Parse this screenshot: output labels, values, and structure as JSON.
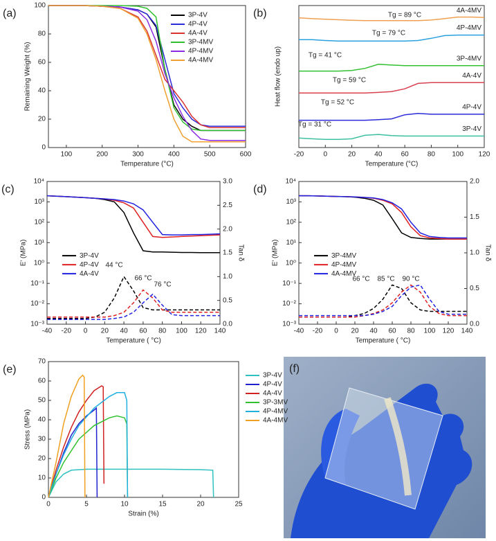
{
  "chart_data": [
    {
      "type": "line",
      "label": "(a)",
      "xlabel": "Temperature (°C)",
      "ylabel": "Remaining Weight (%)",
      "xlim": [
        50,
        600
      ],
      "xticks": [
        100,
        200,
        300,
        400,
        500,
        600
      ],
      "ylim": [
        0,
        100
      ],
      "yticks": [
        0,
        20,
        40,
        60,
        80,
        100
      ],
      "legend": "upper right",
      "x": [
        50,
        100,
        150,
        200,
        250,
        300,
        325,
        350,
        375,
        400,
        425,
        450,
        475,
        500,
        550,
        600
      ],
      "series": [
        {
          "name": "3P-4V",
          "color": "#000000",
          "values": [
            100,
            100,
            100,
            99.5,
            99,
            97,
            94,
            85,
            55,
            30,
            20,
            15,
            12,
            12,
            12,
            12
          ]
        },
        {
          "name": "4P-4V",
          "color": "#2b2bd9",
          "values": [
            100,
            100,
            100,
            99.5,
            99,
            97,
            94,
            86,
            62,
            38,
            28,
            20,
            16,
            15,
            15,
            15
          ]
        },
        {
          "name": "4A-4V",
          "color": "#d93030",
          "values": [
            100,
            100,
            100,
            99.5,
            98,
            92,
            82,
            65,
            48,
            40,
            32,
            22,
            16,
            14,
            14,
            14
          ]
        },
        {
          "name": "3P-4MV",
          "color": "#2fc02f",
          "values": [
            100,
            100,
            100,
            100,
            100,
            99.5,
            98,
            92,
            55,
            28,
            18,
            13,
            12,
            12,
            12,
            12
          ]
        },
        {
          "name": "4P-4MV",
          "color": "#8a2be2",
          "values": [
            100,
            100,
            100,
            99.5,
            99,
            96,
            90,
            75,
            52,
            35,
            22,
            12,
            6,
            5,
            5,
            5
          ]
        },
        {
          "name": "4A-4MV",
          "color": "#f0a030",
          "values": [
            100,
            100,
            100,
            99.5,
            98,
            91,
            80,
            62,
            40,
            20,
            8,
            4,
            4,
            4,
            4,
            4
          ]
        }
      ]
    },
    {
      "type": "line",
      "label": "(b)",
      "xlabel": "Temperature (°C)",
      "ylabel": "Heat flow (endo up)",
      "xlim": [
        -20,
        120
      ],
      "xticks": [
        -20,
        0,
        20,
        40,
        60,
        80,
        100,
        120
      ],
      "ylim": [
        0,
        5.2
      ],
      "legend": "inline",
      "x": [
        -20,
        -10,
        0,
        10,
        20,
        30,
        40,
        50,
        60,
        70,
        80,
        90,
        100,
        110,
        120
      ],
      "series": [
        {
          "name": "3P-4V",
          "color": "#3cc0a0",
          "values": [
            0.35,
            0.32,
            0.3,
            0.3,
            0.32,
            0.45,
            0.48,
            0.44,
            0.42,
            0.42,
            0.42,
            0.42,
            0.42,
            0.42,
            0.42
          ]
        },
        {
          "name": "4P-4V",
          "color": "#2b2bd9",
          "values": [
            1.0,
            1.0,
            1.0,
            1.0,
            1.0,
            1.0,
            1.02,
            1.05,
            1.2,
            1.25,
            1.22,
            1.22,
            1.22,
            1.22,
            1.22
          ]
        },
        {
          "name": "4A-4V",
          "color": "#d94050",
          "values": [
            2.0,
            2.0,
            2.0,
            2.0,
            2.0,
            2.0,
            2.02,
            2.05,
            2.15,
            2.35,
            2.38,
            2.38,
            2.38,
            2.38,
            2.38
          ]
        },
        {
          "name": "3P-4MV",
          "color": "#30c030",
          "values": [
            2.8,
            2.8,
            2.8,
            2.8,
            2.82,
            2.9,
            3.05,
            3.02,
            3.0,
            3.0,
            3.0,
            3.0,
            3.0,
            3.0,
            3.0
          ]
        },
        {
          "name": "4P-4MV",
          "color": "#2aa0e0",
          "values": [
            3.95,
            3.95,
            3.92,
            3.9,
            3.9,
            3.9,
            3.9,
            3.9,
            3.9,
            3.92,
            4.0,
            4.1,
            4.12,
            4.12,
            4.12
          ]
        },
        {
          "name": "4A-4MV",
          "color": "#f0a050",
          "values": [
            4.75,
            4.72,
            4.7,
            4.68,
            4.66,
            4.65,
            4.65,
            4.65,
            4.65,
            4.65,
            4.67,
            4.72,
            4.78,
            4.78,
            4.76
          ]
        }
      ],
      "annotations": [
        {
          "text": "Tg = 89 °C",
          "color": "#000"
        },
        {
          "text": "Tg = 79 °C",
          "color": "#000"
        },
        {
          "text": "Tg = 41 °C",
          "color": "#000"
        },
        {
          "text": "Tg = 59 °C",
          "color": "#000"
        },
        {
          "text": "Tg = 52 °C",
          "color": "#000"
        },
        {
          "text": "Tg = 31 °C",
          "color": "#000"
        }
      ]
    },
    {
      "type": "line",
      "label": "(c)",
      "xlabel": "Temperature ( °C)",
      "ylabel": "E' (MPa)",
      "y2label": "Tan δ",
      "xlim": [
        -40,
        140
      ],
      "xticks": [
        -40,
        -20,
        0,
        20,
        40,
        60,
        80,
        100,
        120,
        140
      ],
      "ylog": true,
      "ylim": [
        0.001,
        10000
      ],
      "yticks": [
        {
          "value": 0.001,
          "label": "10⁻³"
        },
        {
          "value": 0.01,
          "label": "10⁻²"
        },
        {
          "value": 0.1,
          "label": "10⁻¹"
        },
        {
          "value": 1,
          "label": "10⁰"
        },
        {
          "value": 10,
          "label": "10¹"
        },
        {
          "value": 100,
          "label": "10²"
        },
        {
          "value": 1000,
          "label": "10³"
        },
        {
          "value": 10000,
          "label": "10⁴"
        }
      ],
      "y2lim": [
        0,
        3
      ],
      "y2ticks": [
        {
          "value": 0,
          "label": "0.0"
        },
        0.5,
        {
          "value": 1,
          "label": "1.0"
        },
        1.5,
        {
          "value": 2,
          "label": "2.0"
        },
        2.5,
        {
          "value": 3,
          "label": "3.0"
        }
      ],
      "legend": "center left",
      "x": [
        -40,
        -30,
        -20,
        -10,
        0,
        10,
        20,
        30,
        40,
        50,
        60,
        70,
        80,
        90,
        100,
        110,
        120,
        130,
        140
      ],
      "series": [
        {
          "name": "3P-4V",
          "color": "#000000",
          "values": [
            2000,
            1900,
            1800,
            1700,
            1600,
            1500,
            1300,
            1000,
            300,
            30,
            4,
            3.5,
            3.5,
            3.4,
            3.3,
            3.3,
            3.2,
            3.2,
            3.2
          ]
        },
        {
          "name": "4P-4V",
          "color": "#e02020",
          "values": [
            2000,
            1900,
            1800,
            1700,
            1600,
            1500,
            1400,
            1200,
            900,
            500,
            100,
            20,
            18,
            19,
            20,
            21,
            22,
            23,
            24
          ]
        },
        {
          "name": "4A-4V",
          "color": "#2020e0",
          "values": [
            2000,
            1900,
            1800,
            1700,
            1600,
            1500,
            1400,
            1300,
            1100,
            800,
            400,
            100,
            25,
            24,
            24,
            25,
            25,
            26,
            27
          ]
        },
        {
          "color": "#000000",
          "dash": true,
          "axis": "y2",
          "values": [
            0.12,
            0.12,
            0.12,
            0.12,
            0.12,
            0.15,
            0.25,
            0.55,
            1.0,
            0.7,
            0.35,
            0.3,
            0.3,
            0.3,
            0.3,
            0.3,
            0.3,
            0.3,
            0.3
          ]
        },
        {
          "color": "#e02020",
          "dash": true,
          "axis": "y2",
          "values": [
            0.15,
            0.15,
            0.15,
            0.15,
            0.15,
            0.15,
            0.15,
            0.18,
            0.25,
            0.45,
            0.72,
            0.55,
            0.3,
            0.25,
            0.25,
            0.25,
            0.25,
            0.25,
            0.25
          ]
        },
        {
          "color": "#2020e0",
          "dash": true,
          "axis": "y2",
          "values": [
            0.1,
            0.1,
            0.1,
            0.1,
            0.1,
            0.1,
            0.1,
            0.12,
            0.15,
            0.25,
            0.45,
            0.63,
            0.4,
            0.2,
            0.18,
            0.18,
            0.18,
            0.18,
            0.18
          ]
        }
      ],
      "annotations": [
        {
          "text": "44 °C",
          "color": "#000"
        },
        {
          "text": "66 °C",
          "color": "#e02020"
        },
        {
          "text": "76 °C",
          "color": "#2020e0"
        }
      ]
    },
    {
      "type": "line",
      "label": "(d)",
      "xlabel": "Temperature ( °C)",
      "ylabel": "E' (MPa)",
      "y2label": "Tan δ",
      "xlim": [
        -40,
        140
      ],
      "xticks": [
        -40,
        -20,
        0,
        20,
        40,
        60,
        80,
        100,
        120,
        140
      ],
      "ylog": true,
      "ylim": [
        0.001,
        10000
      ],
      "yticks": [
        {
          "value": 0.001,
          "label": "10⁻³"
        },
        {
          "value": 0.01,
          "label": "10⁻²"
        },
        {
          "value": 0.1,
          "label": "10⁻¹"
        },
        {
          "value": 1,
          "label": "10⁰"
        },
        {
          "value": 10,
          "label": "10¹"
        },
        {
          "value": 100,
          "label": "10²"
        },
        {
          "value": 1000,
          "label": "10³"
        },
        {
          "value": 10000,
          "label": "10⁴"
        }
      ],
      "y2lim": [
        0,
        2
      ],
      "y2ticks": [
        {
          "value": 0,
          "label": "0.0"
        },
        0.5,
        {
          "value": 1,
          "label": "1.0"
        },
        1.5,
        {
          "value": 2,
          "label": "2.0"
        }
      ],
      "legend": "center left",
      "x": [
        -40,
        -30,
        -20,
        -10,
        0,
        10,
        20,
        30,
        40,
        50,
        60,
        70,
        80,
        90,
        100,
        110,
        120,
        130,
        140
      ],
      "series": [
        {
          "name": "3P-4MV",
          "color": "#000000",
          "values": [
            2000,
            2000,
            1950,
            1900,
            1850,
            1800,
            1700,
            1500,
            1200,
            700,
            150,
            30,
            18,
            16,
            15,
            15,
            15,
            15,
            15
          ]
        },
        {
          "name": "4P-4MV",
          "color": "#e02020",
          "values": [
            2000,
            2000,
            1950,
            1900,
            1850,
            1800,
            1750,
            1650,
            1500,
            1200,
            800,
            300,
            60,
            22,
            17,
            16,
            15,
            15,
            15
          ]
        },
        {
          "name": "4A-4MV",
          "color": "#2020e0",
          "values": [
            2000,
            2000,
            1950,
            1900,
            1850,
            1800,
            1750,
            1650,
            1550,
            1300,
            900,
            450,
            100,
            30,
            20,
            18,
            17,
            17,
            17
          ]
        },
        {
          "color": "#000000",
          "dash": true,
          "axis": "y2",
          "values": [
            0.1,
            0.1,
            0.1,
            0.1,
            0.1,
            0.1,
            0.12,
            0.15,
            0.22,
            0.35,
            0.55,
            0.5,
            0.3,
            0.2,
            0.18,
            0.18,
            0.18,
            0.18,
            0.18
          ]
        },
        {
          "color": "#e02020",
          "dash": true,
          "axis": "y2",
          "values": [
            0.1,
            0.1,
            0.1,
            0.1,
            0.1,
            0.1,
            0.1,
            0.12,
            0.15,
            0.2,
            0.3,
            0.45,
            0.55,
            0.45,
            0.25,
            0.15,
            0.12,
            0.12,
            0.12
          ]
        },
        {
          "color": "#2020e0",
          "dash": true,
          "axis": "y2",
          "values": [
            0.12,
            0.12,
            0.12,
            0.12,
            0.12,
            0.12,
            0.12,
            0.12,
            0.14,
            0.18,
            0.25,
            0.4,
            0.52,
            0.55,
            0.35,
            0.18,
            0.14,
            0.14,
            0.14
          ]
        }
      ],
      "annotations": [
        {
          "text": "66 °C",
          "color": "#000"
        },
        {
          "text": "85 °C",
          "color": "#e02020"
        },
        {
          "text": "90 °C",
          "color": "#2020e0"
        }
      ]
    },
    {
      "type": "line",
      "label": "(e)",
      "xlabel": "Strain (%)",
      "ylabel": "Stress (MPa)",
      "xlim": [
        0,
        25
      ],
      "xticks": [
        0,
        5,
        10,
        15,
        20,
        25
      ],
      "ylim": [
        0,
        70
      ],
      "yticks": [
        0,
        10,
        20,
        30,
        40,
        50,
        60,
        70
      ],
      "legend": "right",
      "series": [
        {
          "name": "3P-4V",
          "color": "#30c0c0",
          "x": [
            0,
            1,
            2,
            3,
            5,
            10,
            15,
            20,
            21.6,
            21.7
          ],
          "values": [
            0,
            8,
            12,
            14,
            14.5,
            14.5,
            14.5,
            14.3,
            14,
            0
          ]
        },
        {
          "name": "4P-4V",
          "color": "#2020d0",
          "x": [
            0,
            1,
            2,
            3,
            4,
            5,
            6,
            6.3,
            6.4
          ],
          "values": [
            0,
            12,
            23,
            32,
            38,
            42,
            45,
            46,
            0
          ]
        },
        {
          "name": "4A-4V",
          "color": "#d02020",
          "x": [
            0,
            1,
            2,
            3,
            4,
            5,
            6,
            7,
            7.2,
            7.3
          ],
          "values": [
            0,
            14,
            26,
            36,
            44,
            50,
            55,
            57.5,
            57,
            7
          ]
        },
        {
          "name": "3P-3MV",
          "color": "#30c030",
          "x": [
            0,
            1,
            2,
            4,
            6,
            8,
            9,
            10,
            10.3,
            10.4
          ],
          "values": [
            0,
            10,
            18,
            30,
            37,
            41,
            42,
            41,
            38,
            0
          ]
        },
        {
          "name": "4P-4MV",
          "color": "#20b0e0",
          "x": [
            0,
            1,
            2,
            3,
            4,
            6,
            8,
            9,
            10,
            10.3,
            10.4
          ],
          "values": [
            0,
            12,
            22,
            30,
            37,
            46,
            52,
            54,
            54,
            50,
            0
          ]
        },
        {
          "name": "4A-4MV",
          "color": "#f0a020",
          "x": [
            0,
            1,
            2,
            3,
            4,
            4.5,
            4.7,
            4.8
          ],
          "values": [
            0,
            18,
            38,
            52,
            61,
            63,
            62,
            0
          ]
        }
      ]
    }
  ],
  "photo": {
    "label": "(f)"
  }
}
